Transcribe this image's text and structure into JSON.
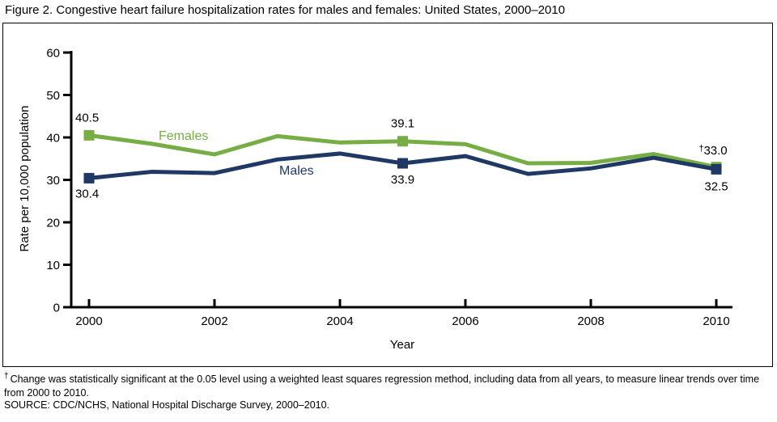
{
  "title": "Figure 2. Congestive heart failure hospitalization rates for males and females: United States, 2000–2010",
  "chart_data": {
    "type": "line",
    "x": [
      2000,
      2001,
      2002,
      2003,
      2004,
      2005,
      2006,
      2007,
      2008,
      2009,
      2010
    ],
    "series": [
      {
        "name": "Females",
        "color": "#76AD45",
        "values": [
          40.5,
          38.5,
          36.0,
          40.3,
          38.8,
          39.1,
          38.4,
          33.9,
          34.0,
          36.1,
          33.0
        ],
        "point_labels": {
          "2000": "40.5",
          "2005": "39.1",
          "2010": "†33.0"
        }
      },
      {
        "name": "Males",
        "color": "#1F3864",
        "values": [
          30.4,
          31.9,
          31.6,
          34.8,
          36.2,
          33.9,
          35.6,
          31.4,
          32.7,
          35.2,
          32.5
        ],
        "point_labels": {
          "2000": "30.4",
          "2005": "33.9",
          "2010": "32.5"
        }
      }
    ],
    "marker_years": [
      2000,
      2005,
      2010
    ],
    "xlabel": "Year",
    "ylabel": "Rate per 10,000 population",
    "ylim": [
      0,
      60
    ],
    "yticks": [
      0,
      10,
      20,
      30,
      40,
      50,
      60
    ],
    "xticks": [
      2000,
      2002,
      2004,
      2006,
      2008,
      2010
    ],
    "grid": "off",
    "legend_position": "inline-labels",
    "axis_color": "#000000",
    "text_color": "#000000"
  },
  "footnotes": {
    "dagger": "†",
    "significance": "Change was statistically significant at the 0.05 level using a weighted least squares regression method, including data from all years, to measure linear trends over time from 2000 to 2010.",
    "source": "SOURCE: CDC/NCHS, National Hospital Discharge Survey, 2000–2010."
  }
}
